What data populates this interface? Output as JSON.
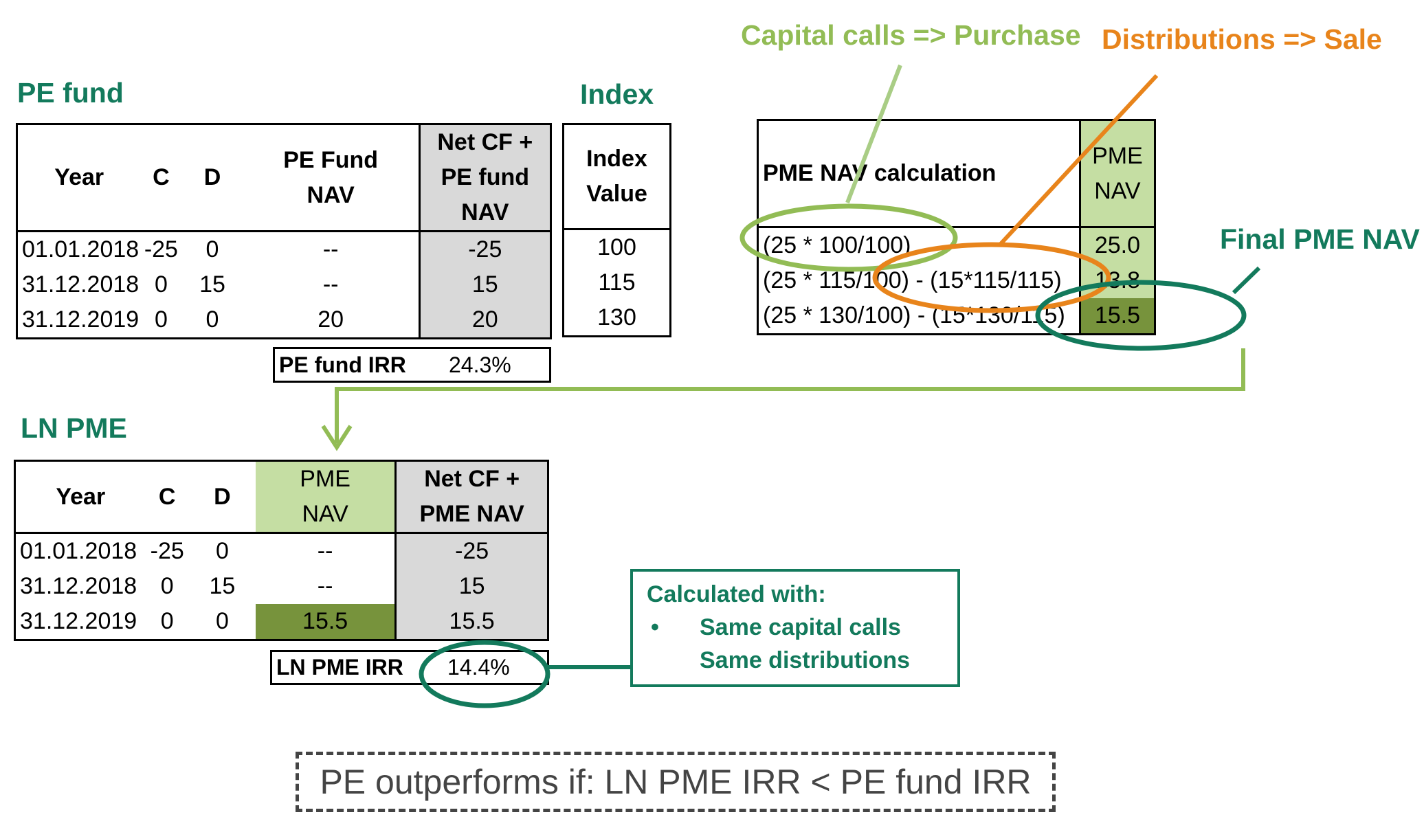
{
  "headings": {
    "pe_fund": "PE fund",
    "index": "Index",
    "ln_pme": "LN PME"
  },
  "callouts": {
    "capital_calls": "Capital calls => Purchase",
    "distributions": "Distributions => Sale",
    "final_pme_nav": "Final PME NAV"
  },
  "pe_table": {
    "headers": {
      "year": "Year",
      "c": "C",
      "d": "D",
      "nav_line1": "PE Fund",
      "nav_line2": "NAV",
      "netcf_line1": "Net CF +",
      "netcf_line2": "PE fund",
      "netcf_line3": "NAV"
    },
    "rows": [
      {
        "year": "01.01.2018",
        "c": "-25",
        "d": "0",
        "nav": "--",
        "netcf": "-25"
      },
      {
        "year": "31.12.2018",
        "c": "0",
        "d": "15",
        "nav": "--",
        "netcf": "15"
      },
      {
        "year": "31.12.2019",
        "c": "0",
        "d": "0",
        "nav": "20",
        "netcf": "20"
      }
    ],
    "irr_label": "PE fund IRR",
    "irr_value": "24.3%"
  },
  "index_table": {
    "header_line1": "Index",
    "header_line2": "Value",
    "values": [
      "100",
      "115",
      "130"
    ]
  },
  "pme_calc_table": {
    "header": "PME NAV calculation",
    "nav_header_line1": "PME",
    "nav_header_line2": "NAV",
    "rows": [
      {
        "formula": "(25 * 100/100)",
        "nav": "25.0"
      },
      {
        "formula": "(25 * 115/100) - (15*115/115)",
        "nav": "13.8"
      },
      {
        "formula": "(25 * 130/100) - (15*130/115)",
        "nav": "15.5"
      }
    ]
  },
  "ln_table": {
    "headers": {
      "year": "Year",
      "c": "C",
      "d": "D",
      "nav_line1": "PME",
      "nav_line2": "NAV",
      "netcf_line1": "Net CF +",
      "netcf_line2": "PME NAV"
    },
    "rows": [
      {
        "year": "01.01.2018",
        "c": "-25",
        "d": "0",
        "nav": "--",
        "netcf": "-25"
      },
      {
        "year": "31.12.2018",
        "c": "0",
        "d": "15",
        "nav": "--",
        "netcf": "15"
      },
      {
        "year": "31.12.2019",
        "c": "0",
        "d": "0",
        "nav": "15.5",
        "netcf": "15.5"
      }
    ],
    "irr_label": "LN PME IRR",
    "irr_value": "14.4%"
  },
  "calc_box": {
    "title": "Calculated with:",
    "bullet": "•",
    "line1": "Same capital calls",
    "line2": "Same distributions"
  },
  "conclusion": "PE outperforms if: LN PME IRR < PE fund IRR",
  "colors": {
    "dark_green": "#137a5c",
    "light_green": "#92bc55",
    "orange": "#e8841b",
    "cell_gray": "#d9d9d9",
    "cell_light_green": "#c5dea3",
    "cell_dark_green": "#77933c"
  }
}
